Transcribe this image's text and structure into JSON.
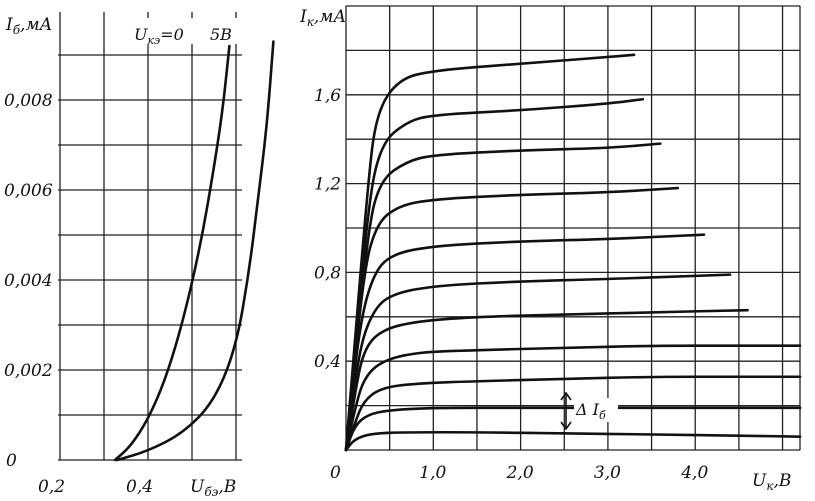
{
  "chart_data": [
    {
      "type": "line",
      "xlabel": "U_бэ, В",
      "xlabel_main": "U",
      "xlabel_sub": "бэ",
      "xlabel_unit": ",В",
      "ylabel": "I_б, мА",
      "ylabel_main": "I",
      "ylabel_sub": "б",
      "ylabel_unit": ",мА",
      "xlim": [
        0.2,
        0.7
      ],
      "ylim": [
        0,
        0.009
      ],
      "x_ticks": [
        {
          "value": 0.2,
          "label": "0,2"
        },
        {
          "value": 0.4,
          "label": "0,4"
        }
      ],
      "y_ticks": [
        {
          "value": 0,
          "label": "0"
        },
        {
          "value": 0.002,
          "label": "0,002"
        },
        {
          "value": 0.004,
          "label": "0,004"
        },
        {
          "value": 0.006,
          "label": "0,006"
        },
        {
          "value": 0.008,
          "label": "0,008"
        }
      ],
      "grid": true,
      "series": [
        {
          "name": "U_кэ=0",
          "x": [
            0.325,
            0.36,
            0.4,
            0.44,
            0.48,
            0.52,
            0.55,
            0.57,
            0.585
          ],
          "y": [
            0,
            0.0003,
            0.0009,
            0.0018,
            0.0031,
            0.0048,
            0.0065,
            0.0078,
            0.0092
          ]
        },
        {
          "name": "5В",
          "x": [
            0.33,
            0.4,
            0.48,
            0.55,
            0.6,
            0.63,
            0.65,
            0.67,
            0.685
          ],
          "y": [
            0,
            0.0002,
            0.0006,
            0.0013,
            0.0025,
            0.0042,
            0.0058,
            0.0074,
            0.0093
          ]
        }
      ],
      "annotations": [
        {
          "text_main": "U",
          "text_sub": "кэ",
          "text_rest": "=0"
        },
        {
          "text": "5В"
        }
      ]
    },
    {
      "type": "line",
      "xlabel": "U_к, В",
      "xlabel_main": "U",
      "xlabel_sub": "к",
      "xlabel_unit": ",В",
      "ylabel": "I_к, мА",
      "ylabel_main": "I",
      "ylabel_sub": "к",
      "ylabel_unit": ",мА",
      "xlim": [
        0,
        5.2
      ],
      "ylim": [
        0,
        2.0
      ],
      "x_ticks": [
        {
          "value": 0,
          "label": "0"
        },
        {
          "value": 1.0,
          "label": "1,0"
        },
        {
          "value": 2.0,
          "label": "2,0"
        },
        {
          "value": 3.0,
          "label": "3,0"
        },
        {
          "value": 4.0,
          "label": "4,0"
        }
      ],
      "y_ticks": [
        {
          "value": 0.4,
          "label": "0,4"
        },
        {
          "value": 0.8,
          "label": "0,8"
        },
        {
          "value": 1.2,
          "label": "1,2"
        },
        {
          "value": 1.6,
          "label": "1,6"
        }
      ],
      "grid": true,
      "series": [
        {
          "x": [
            0,
            0.1,
            0.3,
            0.7,
            1.5,
            2.5,
            3.5,
            4.5,
            5.2
          ],
          "y": [
            0,
            0.05,
            0.075,
            0.08,
            0.08,
            0.075,
            0.07,
            0.065,
            0.06
          ]
        },
        {
          "x": [
            0,
            0.1,
            0.25,
            0.5,
            1.0,
            2.0,
            3.0,
            4.0,
            5.2
          ],
          "y": [
            0,
            0.11,
            0.16,
            0.18,
            0.19,
            0.19,
            0.19,
            0.19,
            0.19
          ]
        },
        {
          "x": [
            0,
            0.1,
            0.2,
            0.4,
            0.8,
            1.5,
            2.5,
            3.5,
            4.5,
            5.2
          ],
          "y": [
            0,
            0.12,
            0.22,
            0.28,
            0.3,
            0.31,
            0.32,
            0.33,
            0.33,
            0.33
          ]
        },
        {
          "x": [
            0,
            0.1,
            0.2,
            0.4,
            0.8,
            1.5,
            2.5,
            3.5,
            4.5,
            5.2
          ],
          "y": [
            0,
            0.18,
            0.32,
            0.4,
            0.44,
            0.45,
            0.46,
            0.47,
            0.47,
            0.47
          ]
        },
        {
          "x": [
            0,
            0.1,
            0.2,
            0.4,
            0.8,
            1.5,
            2.5,
            3.5,
            4.6
          ],
          "y": [
            0,
            0.25,
            0.45,
            0.54,
            0.58,
            0.6,
            0.61,
            0.62,
            0.63
          ]
        },
        {
          "x": [
            0,
            0.15,
            0.3,
            0.5,
            1.0,
            2.0,
            3.0,
            4.4
          ],
          "y": [
            0,
            0.45,
            0.62,
            0.7,
            0.74,
            0.76,
            0.77,
            0.79
          ]
        },
        {
          "x": [
            0,
            0.15,
            0.3,
            0.5,
            1.0,
            2.0,
            3.0,
            4.1
          ],
          "y": [
            0,
            0.55,
            0.78,
            0.88,
            0.92,
            0.94,
            0.95,
            0.97
          ]
        },
        {
          "x": [
            0,
            0.2,
            0.35,
            0.6,
            1.0,
            2.0,
            3.0,
            3.8
          ],
          "y": [
            0,
            0.8,
            1.02,
            1.1,
            1.13,
            1.15,
            1.16,
            1.18
          ]
        },
        {
          "x": [
            0,
            0.25,
            0.4,
            0.7,
            1.0,
            2.0,
            3.0,
            3.6
          ],
          "y": [
            0,
            1.0,
            1.22,
            1.3,
            1.33,
            1.35,
            1.36,
            1.38
          ]
        },
        {
          "x": [
            0,
            0.25,
            0.4,
            0.7,
            1.0,
            2.0,
            3.0,
            3.4
          ],
          "y": [
            0,
            1.1,
            1.38,
            1.48,
            1.51,
            1.53,
            1.56,
            1.58
          ]
        },
        {
          "x": [
            0,
            0.25,
            0.35,
            0.6,
            1.0,
            2.0,
            3.0,
            3.3
          ],
          "y": [
            0,
            1.2,
            1.52,
            1.67,
            1.71,
            1.74,
            1.77,
            1.78
          ]
        }
      ],
      "annotations": [
        {
          "text_prefix": "Δ ",
          "text_main": "I",
          "text_sub": "б"
        }
      ]
    }
  ]
}
